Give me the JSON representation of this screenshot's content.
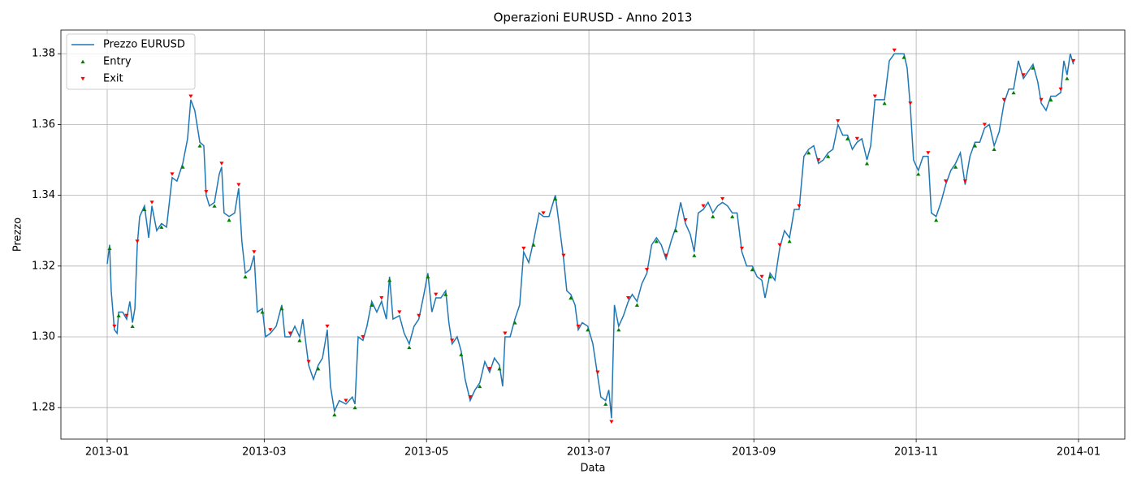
{
  "chart_data": {
    "type": "line",
    "title": "Operazioni EURUSD - Anno 2013",
    "xlabel": "Data",
    "ylabel": "Prezzo",
    "xlim": [
      -17.4,
      382.4
    ],
    "ylim": [
      1.2711,
      1.3867
    ],
    "xticks": [
      {
        "value": 0,
        "label": "2013-01"
      },
      {
        "value": 59,
        "label": "2013-03"
      },
      {
        "value": 120,
        "label": "2013-05"
      },
      {
        "value": 181,
        "label": "2013-07"
      },
      {
        "value": 243,
        "label": "2013-09"
      },
      {
        "value": 304,
        "label": "2013-11"
      },
      {
        "value": 365,
        "label": "2014-01"
      }
    ],
    "yticks": [
      1.28,
      {
        "value": 1.3,
        "label": "1.30"
      },
      1.32,
      1.34,
      1.36,
      1.38
    ],
    "grid": true,
    "legend": "upper left",
    "series": [
      {
        "name": "Prezzo EURUSD",
        "type": "line",
        "color": "#1f77b4",
        "x": [
          0,
          0.9,
          1.5,
          2.7,
          3.7,
          4.3,
          5.8,
          7.3,
          8.5,
          9.5,
          10.4,
          11.3,
          12.2,
          14,
          15.6,
          16.8,
          18.6,
          20.4,
          22.3,
          24.4,
          26.2,
          28.4,
          30.2,
          31.4,
          32.9,
          34.8,
          36.3,
          37.2,
          38.4,
          40.3,
          42.1,
          43,
          43.9,
          45.8,
          47.9,
          49.4,
          50.6,
          51.9,
          53.7,
          55.2,
          56.4,
          58.3,
          59.5,
          61.3,
          63.5,
          65.6,
          66.8,
          68.7,
          70.5,
          72.3,
          73.5,
          75.7,
          77.5,
          79.3,
          80.9,
          82.7,
          83.9,
          85.4,
          87.2,
          89.7,
          92.1,
          93.1,
          94.3,
          96.1,
          97.6,
          99.4,
          101.3,
          103.1,
          104.9,
          106.1,
          107.4,
          109.8,
          111.6,
          113.5,
          115.3,
          117.1,
          119,
          120.5,
          122,
          123.5,
          125.4,
          127.2,
          128.4,
          129.6,
          131.5,
          133,
          134.5,
          136.4,
          138.2,
          140,
          141.9,
          143.7,
          145.5,
          147.4,
          148.6,
          149.5,
          151.4,
          153.2,
          155,
          156.5,
          158.4,
          160.2,
          162.3,
          163.9,
          166,
          168.4,
          170.3,
          171.5,
          172.7,
          174.2,
          175.8,
          177,
          178.5,
          180.6,
          182.5,
          184.3,
          185.5,
          187.3,
          188.5,
          189.5,
          190.6,
          192.2,
          194,
          195.8,
          197.3,
          199.1,
          200.9,
          202.8,
          204.6,
          206.4,
          208.2,
          210,
          211.9,
          213.7,
          215.5,
          217.3,
          219.1,
          220.6,
          222.1,
          224,
          225.8,
          227.6,
          229.4,
          231.2,
          233.1,
          234.9,
          236.7,
          238.5,
          240.3,
          242.4,
          244.2,
          246,
          247.2,
          249.1,
          250.9,
          252.7,
          254.5,
          256.4,
          258.2,
          260,
          261.8,
          263.6,
          265.5,
          267.3,
          269.1,
          270.9,
          272.7,
          274.6,
          276.4,
          278.2,
          280,
          281.8,
          283.6,
          285.5,
          286.9,
          288.5,
          290.3,
          292.1,
          293.9,
          295.8,
          297.6,
          299.4,
          300.6,
          301.8,
          303,
          304.8,
          306.6,
          308.5,
          309.7,
          311.5,
          313.3,
          315.1,
          317,
          318.8,
          320.6,
          322.4,
          324.2,
          326.1,
          327.9,
          329.7,
          331.5,
          333.3,
          335.2,
          337,
          338.8,
          340.6,
          342.4,
          344.3,
          346.1,
          347.9,
          349.7,
          351,
          352.8,
          354.6,
          356.4,
          358.3,
          359.5,
          360.7,
          361.9,
          363.1
        ],
        "values": [
          1.3206,
          1.326,
          1.313,
          1.302,
          1.301,
          1.307,
          1.307,
          1.305,
          1.31,
          1.304,
          1.308,
          1.326,
          1.334,
          1.337,
          1.328,
          1.337,
          1.33,
          1.332,
          1.331,
          1.345,
          1.344,
          1.349,
          1.356,
          1.367,
          1.364,
          1.355,
          1.354,
          1.34,
          1.337,
          1.338,
          1.346,
          1.348,
          1.335,
          1.334,
          1.335,
          1.342,
          1.327,
          1.318,
          1.319,
          1.323,
          1.307,
          1.308,
          1.3,
          1.301,
          1.303,
          1.309,
          1.3,
          1.3,
          1.303,
          1.3,
          1.305,
          1.292,
          1.288,
          1.292,
          1.294,
          1.302,
          1.286,
          1.279,
          1.282,
          1.281,
          1.283,
          1.281,
          1.3,
          1.299,
          1.303,
          1.31,
          1.307,
          1.31,
          1.305,
          1.317,
          1.305,
          1.306,
          1.301,
          1.298,
          1.303,
          1.305,
          1.312,
          1.318,
          1.307,
          1.311,
          1.311,
          1.313,
          1.304,
          1.298,
          1.3,
          1.296,
          1.288,
          1.282,
          1.285,
          1.287,
          1.293,
          1.29,
          1.294,
          1.292,
          1.286,
          1.3,
          1.3,
          1.305,
          1.309,
          1.324,
          1.321,
          1.327,
          1.335,
          1.334,
          1.334,
          1.34,
          1.329,
          1.322,
          1.313,
          1.312,
          1.309,
          1.302,
          1.304,
          1.303,
          1.298,
          1.289,
          1.283,
          1.282,
          1.285,
          1.277,
          1.309,
          1.303,
          1.306,
          1.31,
          1.312,
          1.31,
          1.315,
          1.318,
          1.326,
          1.328,
          1.326,
          1.322,
          1.327,
          1.331,
          1.338,
          1.332,
          1.329,
          1.324,
          1.335,
          1.336,
          1.338,
          1.335,
          1.337,
          1.338,
          1.337,
          1.335,
          1.335,
          1.324,
          1.32,
          1.32,
          1.317,
          1.316,
          1.311,
          1.318,
          1.316,
          1.325,
          1.33,
          1.328,
          1.336,
          1.336,
          1.351,
          1.353,
          1.354,
          1.349,
          1.35,
          1.352,
          1.353,
          1.36,
          1.357,
          1.357,
          1.353,
          1.355,
          1.356,
          1.35,
          1.354,
          1.367,
          1.367,
          1.367,
          1.378,
          1.38,
          1.38,
          1.38,
          1.376,
          1.365,
          1.35,
          1.347,
          1.351,
          1.351,
          1.335,
          1.334,
          1.338,
          1.343,
          1.347,
          1.349,
          1.352,
          1.343,
          1.351,
          1.355,
          1.355,
          1.359,
          1.36,
          1.354,
          1.358,
          1.366,
          1.37,
          1.37,
          1.378,
          1.373,
          1.375,
          1.377,
          1.372,
          1.366,
          1.364,
          1.368,
          1.368,
          1.369,
          1.378,
          1.374,
          1.38,
          1.377
        ]
      },
      {
        "name": "Entry",
        "type": "scatter",
        "marker": "^",
        "color": "#008000",
        "x": [
          0.9,
          4.3,
          9.5,
          14,
          20.4,
          28.4,
          34.8,
          40.3,
          45.8,
          51.9,
          58.3,
          65.6,
          72.3,
          79.3,
          85.4,
          93.1,
          99.4,
          106.1,
          113.5,
          120.5,
          127.2,
          133,
          140,
          147.4,
          153.2,
          160.2,
          168.4,
          174.2,
          180.6,
          187.3,
          192.2,
          199.1,
          206.4,
          213.7,
          220.6,
          227.6,
          234.9,
          242.4,
          249.1,
          256.4,
          263.6,
          270.9,
          278.2,
          285.5,
          292.1,
          299.4,
          304.8,
          311.5,
          318.8,
          326.1,
          333.3,
          340.6,
          347.9,
          354.6,
          360.7
        ],
        "values": [
          1.325,
          1.306,
          1.303,
          1.336,
          1.331,
          1.348,
          1.354,
          1.337,
          1.333,
          1.317,
          1.307,
          1.308,
          1.299,
          1.291,
          1.278,
          1.28,
          1.309,
          1.316,
          1.297,
          1.317,
          1.312,
          1.295,
          1.286,
          1.291,
          1.304,
          1.326,
          1.339,
          1.311,
          1.302,
          1.281,
          1.302,
          1.309,
          1.327,
          1.33,
          1.323,
          1.334,
          1.334,
          1.319,
          1.317,
          1.327,
          1.352,
          1.351,
          1.356,
          1.349,
          1.366,
          1.379,
          1.346,
          1.333,
          1.348,
          1.354,
          1.353,
          1.369,
          1.376,
          1.367,
          1.373
        ]
      },
      {
        "name": "Exit",
        "type": "scatter",
        "marker": "v",
        "color": "#ff0000",
        "x": [
          2.7,
          7.3,
          11.3,
          16.8,
          24.4,
          31.4,
          37.2,
          43,
          49.4,
          55.2,
          61.3,
          68.7,
          75.7,
          82.7,
          89.7,
          96.1,
          103.1,
          109.8,
          117.1,
          123.5,
          129.6,
          136.4,
          143.7,
          149.5,
          156.5,
          163.9,
          171.5,
          177,
          184.3,
          189.5,
          195.8,
          202.8,
          210,
          217.3,
          224,
          231.2,
          238.5,
          246,
          252.7,
          260,
          267.3,
          274.6,
          281.8,
          288.5,
          295.8,
          301.8,
          308.5,
          315.1,
          322.4,
          329.7,
          337,
          344.3,
          351,
          358.3,
          363.1
        ],
        "values": [
          1.303,
          1.306,
          1.327,
          1.338,
          1.346,
          1.368,
          1.341,
          1.349,
          1.343,
          1.324,
          1.302,
          1.301,
          1.293,
          1.303,
          1.282,
          1.3,
          1.311,
          1.307,
          1.306,
          1.312,
          1.299,
          1.283,
          1.291,
          1.301,
          1.325,
          1.335,
          1.323,
          1.303,
          1.29,
          1.276,
          1.311,
          1.319,
          1.323,
          1.333,
          1.337,
          1.339,
          1.325,
          1.317,
          1.326,
          1.337,
          1.35,
          1.361,
          1.356,
          1.368,
          1.381,
          1.366,
          1.352,
          1.344,
          1.344,
          1.36,
          1.367,
          1.374,
          1.367,
          1.37,
          1.378
        ]
      }
    ]
  }
}
